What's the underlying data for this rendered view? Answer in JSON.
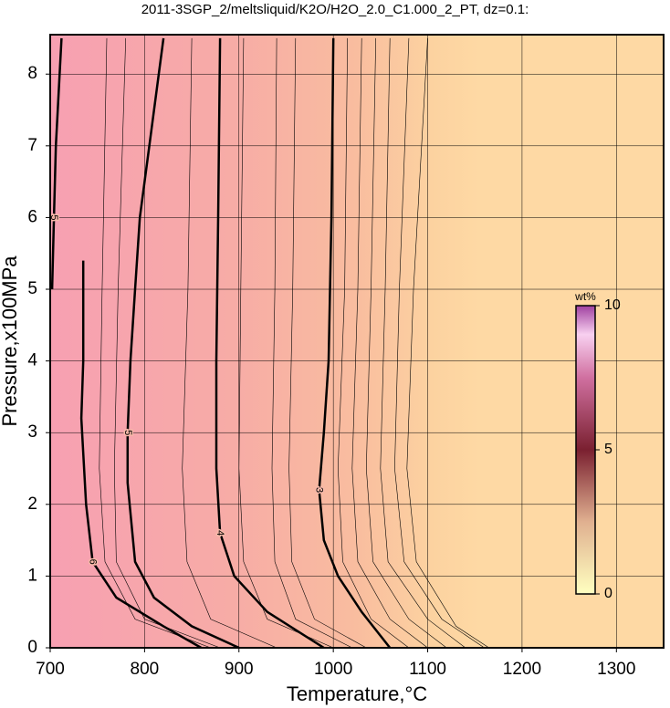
{
  "chart_data": {
    "type": "contour",
    "title": "2011-3SGP_2/meltsliquid/K2O/H2O_2.0_C1.000_2_PT, dz=0.1:",
    "x_label": "Temperature,°C",
    "y_label": "Pressure,x100MPa",
    "xlim": [
      700,
      1350
    ],
    "ylim": [
      0,
      8.55
    ],
    "xticks": [
      700,
      800,
      900,
      1000,
      1100,
      1200,
      1300
    ],
    "yticks": [
      0,
      1,
      2,
      3,
      4,
      5,
      6,
      7,
      8
    ],
    "grid": true,
    "contours": [
      {
        "level": 3,
        "t": [
          1000,
          998,
          995,
          990,
          985,
          990,
          1005,
          1030,
          1060
        ],
        "p": [
          8.5,
          6,
          4,
          3,
          2.2,
          1.5,
          1,
          0.5,
          0
        ]
      },
      {
        "level": 4,
        "t": [
          880,
          878,
          876,
          876,
          880,
          895,
          930,
          990
        ],
        "p": [
          8.5,
          6,
          4,
          2.5,
          1.6,
          1,
          0.5,
          0
        ]
      },
      {
        "level": 5,
        "t": [
          820,
          805,
          795,
          790,
          785,
          782,
          782,
          790,
          810,
          850,
          900
        ],
        "p": [
          8.5,
          7,
          6,
          5,
          4,
          3,
          2.3,
          1.2,
          0.7,
          0.3,
          0
        ]
      },
      {
        "level": 6,
        "t": [
          735,
          735,
          733,
          738,
          745,
          770,
          820,
          860
        ],
        "p": [
          5.4,
          4,
          3.2,
          2,
          1.2,
          0.7,
          0.3,
          0
        ]
      },
      {
        "level": 5,
        "t": [
          712,
          706,
          704,
          702
        ],
        "p": [
          8.5,
          7,
          6,
          5
        ]
      }
    ],
    "thin_contours": [
      {
        "t": [
          1015,
          1012,
          1005,
          1010,
          1040,
          1080
        ],
        "p": [
          8.5,
          5,
          2.5,
          1.2,
          0.4,
          0
        ]
      },
      {
        "t": [
          1030,
          1026,
          1020,
          1026,
          1060,
          1100
        ],
        "p": [
          8.5,
          5,
          2.5,
          1.2,
          0.4,
          0
        ]
      },
      {
        "t": [
          1045,
          1040,
          1035,
          1042,
          1080,
          1120
        ],
        "p": [
          8.5,
          5,
          2.5,
          1.2,
          0.4,
          0
        ]
      },
      {
        "t": [
          1060,
          1055,
          1050,
          1058,
          1100,
          1140
        ],
        "p": [
          8.5,
          5,
          2.5,
          1.2,
          0.4,
          0
        ]
      },
      {
        "t": [
          1080,
          1070,
          1065,
          1075,
          1115,
          1160
        ],
        "p": [
          8.5,
          5,
          2.5,
          1.2,
          0.4,
          0
        ]
      },
      {
        "t": [
          1100,
          1085,
          1078,
          1088,
          1130,
          1165
        ],
        "p": [
          8.5,
          5,
          2.5,
          1.2,
          0.3,
          0
        ]
      },
      {
        "t": [
          940,
          938,
          935,
          938,
          960,
          1020
        ],
        "p": [
          8.5,
          5,
          2.5,
          1.2,
          0.4,
          0
        ]
      },
      {
        "t": [
          960,
          957,
          953,
          956,
          980,
          1035
        ],
        "p": [
          8.5,
          5,
          2.5,
          1.2,
          0.4,
          0
        ]
      },
      {
        "t": [
          850,
          846,
          840,
          845,
          870,
          940
        ],
        "p": [
          8.5,
          5,
          2.5,
          1.2,
          0.4,
          0
        ]
      },
      {
        "t": [
          905,
          902,
          900,
          905,
          930,
          1000
        ],
        "p": [
          8.5,
          5,
          2.5,
          1.2,
          0.4,
          0
        ]
      },
      {
        "t": [
          760,
          755,
          752,
          758,
          790,
          870
        ],
        "p": [
          8.5,
          5,
          2.5,
          1.2,
          0.4,
          0
        ]
      },
      {
        "t": [
          780,
          772,
          768,
          770,
          800,
          880
        ],
        "p": [
          8.5,
          5,
          2.5,
          1.2,
          0.4,
          0
        ]
      }
    ],
    "colorbar": {
      "label": "wt%",
      "lim": [
        0,
        10
      ],
      "ticks": [
        0,
        5,
        10
      ]
    }
  }
}
